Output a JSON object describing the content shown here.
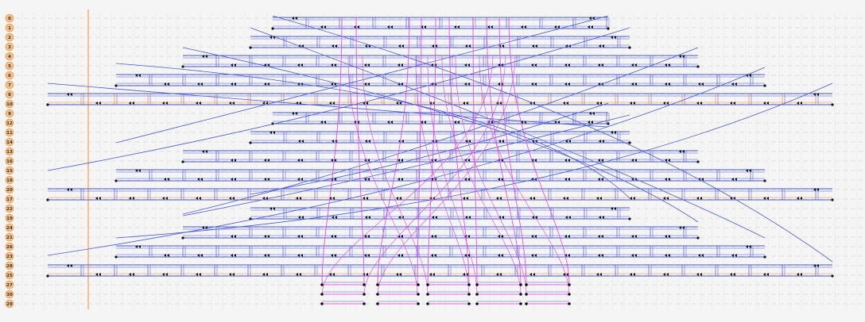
{
  "track_labels": [
    "0",
    "1",
    "2",
    "3",
    "4",
    "5",
    "6",
    "7",
    "8",
    "10",
    "9",
    "12",
    "11",
    "14",
    "13",
    "16",
    "15",
    "18",
    "20",
    "17",
    "22",
    "19",
    "24",
    "21",
    "26",
    "23",
    "28",
    "25",
    "27",
    "30",
    "29"
  ],
  "colors": {
    "background": "#f5f5f5",
    "track_badge": "#f3c08a",
    "track_badge_border": "#e08a3c",
    "track_badge_text": "#333333",
    "grid": "#d8d8d8",
    "cursor_line": "#f4b27a",
    "blue_path": "#4a5bd4",
    "orange_path": "#f08a3a",
    "magenta_path": "#e040e8",
    "node": "#111111"
  },
  "icons": {
    "node_marker": "double-triangle-marker",
    "endpoint": "dot-marker"
  }
}
